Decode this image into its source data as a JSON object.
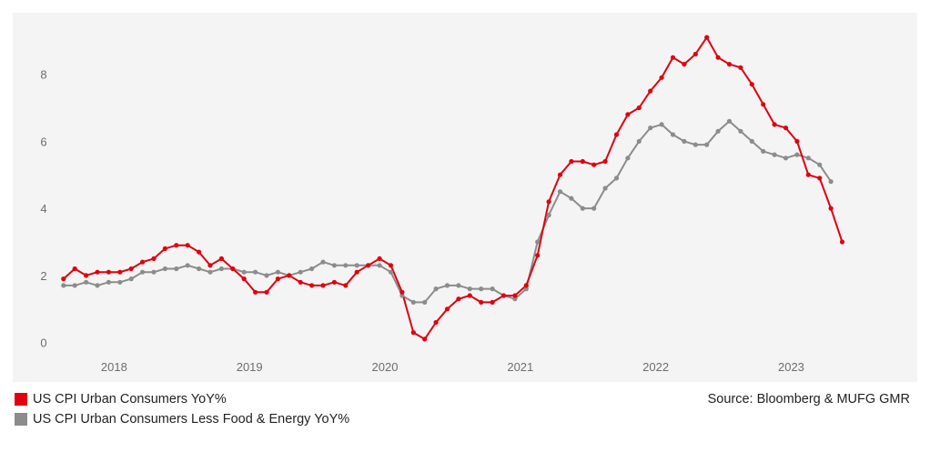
{
  "chart_data": {
    "type": "line",
    "title": "",
    "xlabel": "",
    "ylabel": "",
    "x_start": 2017.6667,
    "x_step": 0.083333,
    "xlim": [
      2017.5,
      2023.85
    ],
    "ylim": [
      -0.2,
      9.4
    ],
    "yticks": [
      0,
      2,
      4,
      6,
      8
    ],
    "ytick_labels": [
      "0",
      "2",
      "4",
      "6",
      "8"
    ],
    "xticks": [
      2018,
      2019,
      2020,
      2021,
      2022,
      2023
    ],
    "xtick_labels": [
      "2018",
      "2019",
      "2020",
      "2021",
      "2022",
      "2023"
    ],
    "grid": false,
    "series": [
      {
        "name": "US CPI Urban Consumers YoY%",
        "color": "#e0000f",
        "values": [
          1.9,
          2.2,
          2.0,
          2.1,
          2.1,
          2.1,
          2.2,
          2.4,
          2.5,
          2.8,
          2.9,
          2.9,
          2.7,
          2.3,
          2.5,
          2.2,
          1.9,
          1.5,
          1.5,
          1.9,
          2.0,
          1.8,
          1.7,
          1.7,
          1.8,
          1.7,
          2.1,
          2.3,
          2.5,
          2.3,
          1.5,
          0.3,
          0.1,
          0.6,
          1.0,
          1.3,
          1.4,
          1.2,
          1.2,
          1.4,
          1.4,
          1.7,
          2.6,
          4.2,
          5.0,
          5.4,
          5.4,
          5.3,
          5.4,
          6.2,
          6.8,
          7.0,
          7.5,
          7.9,
          8.5,
          8.3,
          8.6,
          9.1,
          8.5,
          8.3,
          8.2,
          7.7,
          7.1,
          6.5,
          6.4,
          6.0,
          5.0,
          4.9,
          4.0,
          3.0
        ]
      },
      {
        "name": "US CPI Urban Consumers Less Food & Energy YoY%",
        "color": "#8c8c8c",
        "values": [
          1.7,
          1.7,
          1.8,
          1.7,
          1.8,
          1.8,
          1.9,
          2.1,
          2.1,
          2.2,
          2.2,
          2.3,
          2.2,
          2.1,
          2.2,
          2.2,
          2.1,
          2.1,
          2.0,
          2.1,
          2.0,
          2.1,
          2.2,
          2.4,
          2.3,
          2.3,
          2.3,
          2.3,
          2.3,
          2.1,
          1.4,
          1.2,
          1.2,
          1.6,
          1.7,
          1.7,
          1.6,
          1.6,
          1.6,
          1.4,
          1.3,
          1.6,
          3.0,
          3.8,
          4.5,
          4.3,
          4.0,
          4.0,
          4.6,
          4.9,
          5.5,
          6.0,
          6.4,
          6.5,
          6.2,
          6.0,
          5.9,
          5.9,
          6.3,
          6.6,
          6.3,
          6.0,
          5.7,
          5.6,
          5.5,
          5.6,
          5.5,
          5.3,
          4.8
        ]
      }
    ]
  },
  "legend": {
    "items": [
      {
        "label": "US CPI Urban Consumers YoY%",
        "color": "#e0000f"
      },
      {
        "label": "US CPI Urban Consumers Less Food & Energy YoY%",
        "color": "#8c8c8c"
      }
    ]
  },
  "source": "Source: Bloomberg & MUFG GMR",
  "colors": {
    "plot_background": "#f4f4f4"
  }
}
